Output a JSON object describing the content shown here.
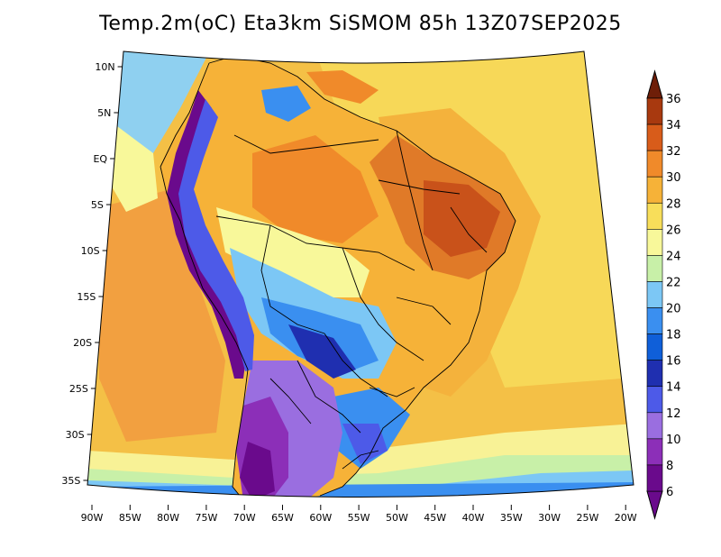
{
  "title": "Temp.2m(oC) Eta3km SiSMOM 85h 13Z07SEP2025",
  "lat_labels": [
    "10N",
    "5N",
    "EQ",
    "5S",
    "10S",
    "15S",
    "20S",
    "25S",
    "30S",
    "35S"
  ],
  "lon_labels": [
    "90W",
    "85W",
    "80W",
    "75W",
    "70W",
    "65W",
    "60W",
    "55W",
    "50W",
    "45W",
    "40W",
    "35W",
    "30W",
    "25W",
    "20W"
  ],
  "colorbar": {
    "levels": [
      "6",
      "8",
      "10",
      "12",
      "14",
      "16",
      "18",
      "20",
      "22",
      "24",
      "26",
      "28",
      "30",
      "32",
      "34",
      "36"
    ],
    "colors": [
      "#6a0a8c",
      "#8c2fb8",
      "#9a6ee0",
      "#4d5ae8",
      "#1f2fb0",
      "#0f5fd9",
      "#3a8ff0",
      "#7cc7f5",
      "#c8f0a8",
      "#f8f89a",
      "#f8de5a",
      "#f6b238",
      "#f08a2a",
      "#d85c1a",
      "#a8390f",
      "#6e1e08"
    ]
  },
  "units": "oC"
}
